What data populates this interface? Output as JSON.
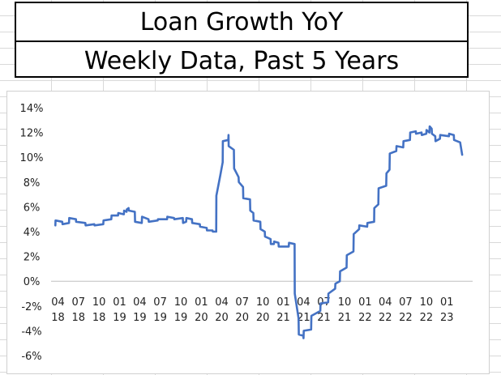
{
  "title": "Loan Growth YoY",
  "subtitle": "Weekly Data, Past 5 Years",
  "chart_data": {
    "type": "line",
    "title": "Loan Growth YoY",
    "subtitle": "Weekly Data, Past 5 Years",
    "xlabel": "",
    "ylabel": "",
    "y_tick_labels": [
      "14%",
      "12%",
      "10%",
      "8%",
      "6%",
      "4%",
      "2%",
      "0%",
      "-2%",
      "-4%",
      "-6%"
    ],
    "y_ticks": [
      14,
      12,
      10,
      8,
      6,
      4,
      2,
      0,
      -2,
      -4,
      -6
    ],
    "ylim": [
      -6,
      14
    ],
    "x_tick_labels": [
      [
        "04",
        "18"
      ],
      [
        "07",
        "18"
      ],
      [
        "10",
        "18"
      ],
      [
        "01",
        "19"
      ],
      [
        "04",
        "19"
      ],
      [
        "07",
        "19"
      ],
      [
        "10",
        "19"
      ],
      [
        "01",
        "20"
      ],
      [
        "04",
        "20"
      ],
      [
        "07",
        "20"
      ],
      [
        "10",
        "20"
      ],
      [
        "01",
        "21"
      ],
      [
        "04",
        "21"
      ],
      [
        "07",
        "21"
      ],
      [
        "10",
        "21"
      ],
      [
        "01",
        "22"
      ],
      [
        "04",
        "22"
      ],
      [
        "07",
        "22"
      ],
      [
        "10",
        "22"
      ],
      [
        "01",
        "23"
      ]
    ],
    "x_ticks": [
      "2018-04",
      "2018-07",
      "2018-10",
      "2019-01",
      "2019-04",
      "2019-07",
      "2019-10",
      "2020-01",
      "2020-04",
      "2020-07",
      "2020-10",
      "2021-01",
      "2021-04",
      "2021-07",
      "2021-10",
      "2022-01",
      "2022-04",
      "2022-07",
      "2022-10",
      "2023-01"
    ],
    "xlim": [
      "2018-03",
      "2023-06"
    ],
    "grid": false,
    "legend": "none",
    "series": [
      {
        "color": "#4472c4",
        "points": [
          [
            "2018-03-20",
            4.5
          ],
          [
            "2018-03-21",
            4.9
          ],
          [
            "2018-04-20",
            4.8
          ],
          [
            "2018-04-21",
            4.6
          ],
          [
            "2018-05-20",
            4.7
          ],
          [
            "2018-05-21",
            5.1
          ],
          [
            "2018-06-20",
            5.0
          ],
          [
            "2018-06-21",
            4.8
          ],
          [
            "2018-08-01",
            4.7
          ],
          [
            "2018-08-02",
            4.5
          ],
          [
            "2018-09-10",
            4.6
          ],
          [
            "2018-09-11",
            4.5
          ],
          [
            "2018-10-20",
            4.6
          ],
          [
            "2018-10-21",
            4.9
          ],
          [
            "2018-11-25",
            5.0
          ],
          [
            "2018-11-26",
            5.3
          ],
          [
            "2018-12-25",
            5.3
          ],
          [
            "2018-12-26",
            5.5
          ],
          [
            "2019-01-20",
            5.4
          ],
          [
            "2019-01-21",
            5.7
          ],
          [
            "2019-02-01",
            5.6
          ],
          [
            "2019-02-02",
            5.8
          ],
          [
            "2019-02-10",
            5.9
          ],
          [
            "2019-02-11",
            5.7
          ],
          [
            "2019-03-10",
            5.6
          ],
          [
            "2019-03-11",
            4.8
          ],
          [
            "2019-04-10",
            4.7
          ],
          [
            "2019-04-11",
            5.2
          ],
          [
            "2019-05-10",
            5.0
          ],
          [
            "2019-05-11",
            4.8
          ],
          [
            "2019-06-20",
            4.9
          ],
          [
            "2019-06-21",
            5.0
          ],
          [
            "2019-08-01",
            5.0
          ],
          [
            "2019-08-02",
            5.2
          ],
          [
            "2019-09-01",
            5.1
          ],
          [
            "2019-09-02",
            5.0
          ],
          [
            "2019-10-10",
            5.1
          ],
          [
            "2019-10-11",
            4.7
          ],
          [
            "2019-10-25",
            4.8
          ],
          [
            "2019-10-26",
            5.1
          ],
          [
            "2019-11-20",
            5.0
          ],
          [
            "2019-11-21",
            4.7
          ],
          [
            "2019-12-25",
            4.6
          ],
          [
            "2019-12-26",
            4.4
          ],
          [
            "2020-01-25",
            4.3
          ],
          [
            "2020-01-26",
            4.1
          ],
          [
            "2020-02-20",
            4.1
          ],
          [
            "2020-02-21",
            4.0
          ],
          [
            "2020-03-07",
            4.0
          ],
          [
            "2020-03-08",
            6.9
          ],
          [
            "2020-03-25",
            8.5
          ],
          [
            "2020-04-05",
            9.6
          ],
          [
            "2020-04-06",
            11.3
          ],
          [
            "2020-04-30",
            11.4
          ],
          [
            "2020-05-01",
            11.8
          ],
          [
            "2020-05-02",
            10.9
          ],
          [
            "2020-05-25",
            10.6
          ],
          [
            "2020-05-26",
            9.1
          ],
          [
            "2020-06-15",
            8.4
          ],
          [
            "2020-06-16",
            8.0
          ],
          [
            "2020-07-05",
            7.6
          ],
          [
            "2020-07-06",
            6.7
          ],
          [
            "2020-08-05",
            6.6
          ],
          [
            "2020-08-06",
            5.7
          ],
          [
            "2020-08-20",
            5.5
          ],
          [
            "2020-08-21",
            4.9
          ],
          [
            "2020-09-20",
            4.8
          ],
          [
            "2020-09-21",
            4.2
          ],
          [
            "2020-10-10",
            4.0
          ],
          [
            "2020-10-11",
            3.6
          ],
          [
            "2020-11-05",
            3.4
          ],
          [
            "2020-11-06",
            3.0
          ],
          [
            "2020-11-20",
            3.0
          ],
          [
            "2020-11-21",
            3.2
          ],
          [
            "2020-12-10",
            3.1
          ],
          [
            "2020-12-11",
            2.8
          ],
          [
            "2021-01-25",
            2.8
          ],
          [
            "2021-01-26",
            3.1
          ],
          [
            "2021-02-20",
            3.0
          ],
          [
            "2021-02-21",
            -1.0
          ],
          [
            "2021-03-10",
            -3.0
          ],
          [
            "2021-03-11",
            -4.3
          ],
          [
            "2021-03-31",
            -4.4
          ],
          [
            "2021-04-01",
            -4.6
          ],
          [
            "2021-04-02",
            -4.0
          ],
          [
            "2021-05-05",
            -3.9
          ],
          [
            "2021-05-06",
            -2.8
          ],
          [
            "2021-06-15",
            -2.4
          ],
          [
            "2021-06-16",
            -1.8
          ],
          [
            "2021-07-20",
            -1.7
          ],
          [
            "2021-07-21",
            -1.0
          ],
          [
            "2021-08-20",
            -0.6
          ],
          [
            "2021-08-21",
            -0.2
          ],
          [
            "2021-09-10",
            0.0
          ],
          [
            "2021-09-11",
            0.8
          ],
          [
            "2021-10-10",
            1.1
          ],
          [
            "2021-10-11",
            2.1
          ],
          [
            "2021-11-10",
            2.4
          ],
          [
            "2021-11-11",
            3.8
          ],
          [
            "2021-12-05",
            4.2
          ],
          [
            "2021-12-06",
            4.5
          ],
          [
            "2022-01-10",
            4.4
          ],
          [
            "2022-01-11",
            4.7
          ],
          [
            "2022-02-10",
            4.8
          ],
          [
            "2022-02-11",
            5.9
          ],
          [
            "2022-03-01",
            6.2
          ],
          [
            "2022-03-02",
            7.5
          ],
          [
            "2022-04-05",
            7.7
          ],
          [
            "2022-04-06",
            8.7
          ],
          [
            "2022-04-20",
            9.0
          ],
          [
            "2022-04-21",
            10.3
          ],
          [
            "2022-05-20",
            10.5
          ],
          [
            "2022-05-21",
            10.9
          ],
          [
            "2022-06-20",
            10.8
          ],
          [
            "2022-06-21",
            11.3
          ],
          [
            "2022-07-20",
            11.4
          ],
          [
            "2022-07-21",
            12.0
          ],
          [
            "2022-08-15",
            12.1
          ],
          [
            "2022-08-16",
            11.9
          ],
          [
            "2022-09-10",
            12.0
          ],
          [
            "2022-09-11",
            11.8
          ],
          [
            "2022-10-01",
            11.9
          ],
          [
            "2022-10-02",
            12.2
          ],
          [
            "2022-10-15",
            12.0
          ],
          [
            "2022-10-16",
            12.5
          ],
          [
            "2022-10-25",
            12.3
          ],
          [
            "2022-10-26",
            11.9
          ],
          [
            "2022-11-10",
            11.7
          ],
          [
            "2022-11-11",
            11.3
          ],
          [
            "2022-12-01",
            11.5
          ],
          [
            "2022-12-02",
            11.8
          ],
          [
            "2023-01-10",
            11.7
          ],
          [
            "2023-01-11",
            11.9
          ],
          [
            "2023-02-01",
            11.8
          ],
          [
            "2023-02-02",
            11.4
          ],
          [
            "2023-03-01",
            11.2
          ],
          [
            "2023-03-10",
            10.2
          ]
        ]
      }
    ]
  }
}
